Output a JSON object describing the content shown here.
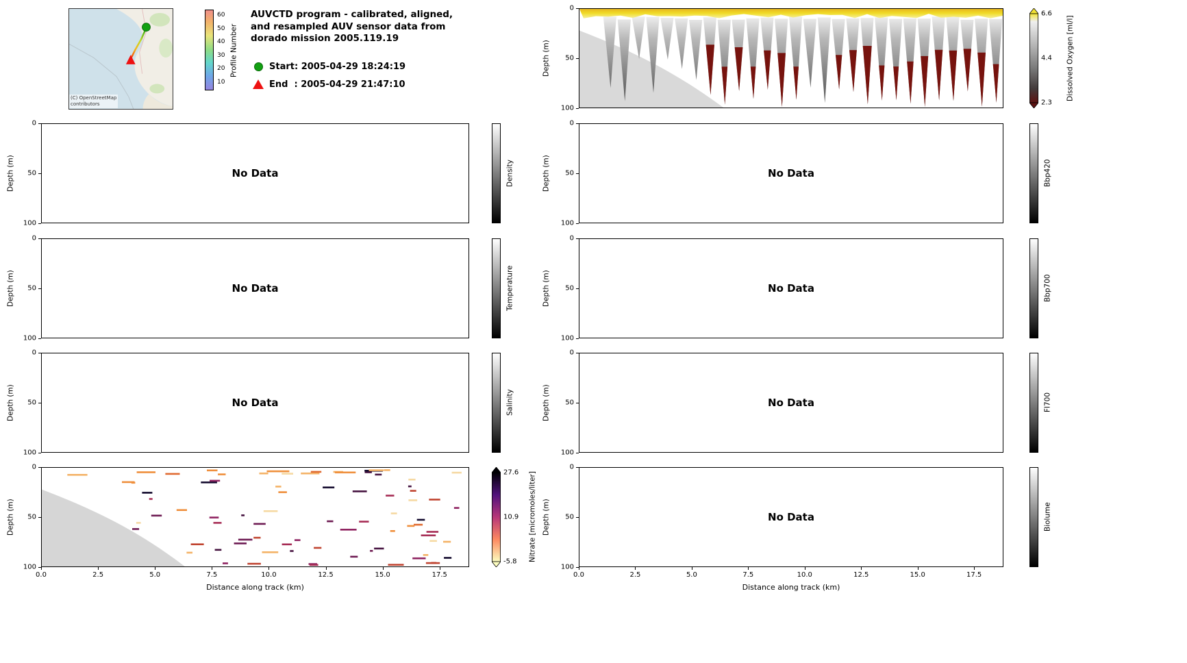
{
  "header": {
    "title_lines": [
      "AUVCTD program - calibrated, aligned,",
      "and resampled AUV sensor data from",
      "dorado mission 2005.119.19"
    ],
    "legend": {
      "start_label": "Start: 2005-04-29 18:24:19",
      "end_label": "End  : 2005-04-29 21:47:10",
      "start_color": "#12a012",
      "end_color": "#ee1111"
    }
  },
  "map": {
    "attribution_lines": [
      "(C) OpenStreetMap",
      "contributors"
    ],
    "colorbar": {
      "label": "Profile Number",
      "ticks": [
        "60",
        "50",
        "40",
        "30",
        "20",
        "10"
      ]
    }
  },
  "axes": {
    "depth_label": "Depth (m)",
    "depth_ticks": [
      "0",
      "50",
      "100"
    ],
    "x_label": "Distance along track (km)",
    "x_ticks": [
      "0.0",
      "2.5",
      "5.0",
      "7.5",
      "10.0",
      "12.5",
      "15.0",
      "17.5"
    ],
    "x_max_km": 18.8,
    "depth_range_m": [
      0,
      100
    ]
  },
  "labels": {
    "no_data": "No Data"
  },
  "chart_data": [
    {
      "id": "track_map",
      "type": "map",
      "description": "Monterey Bay coastline map with AUV track colored by profile number; green circle start marker to the north-east of the track, red triangle end marker to the south-west.",
      "colorbar": {
        "label": "Profile Number",
        "ticks": [
          60,
          50,
          40,
          30,
          20,
          10
        ]
      }
    },
    {
      "id": "dissolved_oxygen",
      "type": "section-heatmap",
      "column": "right",
      "row": 0,
      "has_data": true,
      "ylabel": "Depth (m)",
      "ylim": [
        100,
        0
      ],
      "yticks": [
        0,
        50,
        100
      ],
      "xlim_km": [
        0,
        18.8
      ],
      "value_range": [
        2.3,
        6.6
      ],
      "summary": "High oxygen (~6.6 ml/l, yellow) in the upper ~10 m along the whole transect; below, sawtooth profile envelopes shade from light to dark gray with depth; hypoxic dark-red water (~2.3 ml/l) deeper than ~50 m beyond ~6 km along track; light-gray seafloor mask slopes from ~25 m depth at 0 km down to 100 m near 6.5 km.",
      "colorbar": {
        "label": "Dissolved Oxygen [ml/l]",
        "ticks": [
          "6.6",
          "4.4",
          "2.3"
        ],
        "extend": "both",
        "stops": [
          [
            "#f2e334",
            0
          ],
          [
            "#efefef",
            9
          ],
          [
            "#b0b0b0",
            38
          ],
          [
            "#787878",
            62
          ],
          [
            "#433a3a",
            84
          ],
          [
            "#5e1312",
            100
          ]
        ]
      }
    },
    {
      "id": "density",
      "type": "section-heatmap",
      "column": "left",
      "row": 1,
      "has_data": false,
      "ylabel": "Depth (m)",
      "ylim": [
        100,
        0
      ],
      "yticks": [
        0,
        50,
        100
      ],
      "colorbar": {
        "label": "Density",
        "stops": [
          [
            "#ffffff",
            0
          ],
          [
            "#000000",
            100
          ]
        ]
      }
    },
    {
      "id": "bbp420",
      "type": "section-heatmap",
      "column": "right",
      "row": 1,
      "has_data": false,
      "ylabel": "Depth (m)",
      "ylim": [
        100,
        0
      ],
      "yticks": [
        0,
        50,
        100
      ],
      "colorbar": {
        "label": "Bbp420",
        "stops": [
          [
            "#ffffff",
            0
          ],
          [
            "#000000",
            100
          ]
        ]
      }
    },
    {
      "id": "temperature",
      "type": "section-heatmap",
      "column": "left",
      "row": 2,
      "has_data": false,
      "ylabel": "Depth (m)",
      "ylim": [
        100,
        0
      ],
      "yticks": [
        0,
        50,
        100
      ],
      "colorbar": {
        "label": "Temperature",
        "stops": [
          [
            "#ffffff",
            0
          ],
          [
            "#000000",
            100
          ]
        ]
      }
    },
    {
      "id": "bbp700",
      "type": "section-heatmap",
      "column": "right",
      "row": 2,
      "has_data": false,
      "ylabel": "Depth (m)",
      "ylim": [
        100,
        0
      ],
      "yticks": [
        0,
        50,
        100
      ],
      "colorbar": {
        "label": "Bbp700",
        "stops": [
          [
            "#ffffff",
            0
          ],
          [
            "#000000",
            100
          ]
        ]
      }
    },
    {
      "id": "salinity",
      "type": "section-heatmap",
      "column": "left",
      "row": 3,
      "has_data": false,
      "ylabel": "Depth (m)",
      "ylim": [
        100,
        0
      ],
      "yticks": [
        0,
        50,
        100
      ],
      "colorbar": {
        "label": "Salinity",
        "stops": [
          [
            "#ffffff",
            0
          ],
          [
            "#000000",
            100
          ]
        ]
      }
    },
    {
      "id": "fl700",
      "type": "section-heatmap",
      "column": "right",
      "row": 3,
      "has_data": false,
      "ylabel": "Depth (m)",
      "ylim": [
        100,
        0
      ],
      "yticks": [
        0,
        50,
        100
      ],
      "colorbar": {
        "label": "Fl700",
        "stops": [
          [
            "#ffffff",
            0
          ],
          [
            "#000000",
            100
          ]
        ]
      }
    },
    {
      "id": "nitrate",
      "type": "section-scatter",
      "column": "left",
      "row": 4,
      "has_data": true,
      "ylabel": "Depth (m)",
      "ylim": [
        100,
        0
      ],
      "yticks": [
        0,
        50,
        100
      ],
      "xlim_km": [
        0,
        18.8
      ],
      "value_range": [
        -5.8,
        27.6
      ],
      "summary": "Sparse short horizontal streaks of nitrate samples: pale-orange low values in the upper ~10 m across the transect; scattered dark-purple and crimson higher values between ~15 and 100 m, mostly beyond 4 km along track; light-gray seafloor mask in the lower-left wedge (0 - 6.5 km).",
      "colorbar": {
        "label": "Nitrate [micromoles/liter]",
        "ticks": [
          "27.6",
          "10.9",
          "-5.8"
        ],
        "extend": "both",
        "stops": [
          [
            "#000004",
            0
          ],
          [
            "#51127c",
            25
          ],
          [
            "#b73779",
            50
          ],
          [
            "#fc8961",
            75
          ],
          [
            "#fcfdbf",
            100
          ]
        ]
      }
    },
    {
      "id": "biolume",
      "type": "section-heatmap",
      "column": "right",
      "row": 4,
      "has_data": false,
      "ylabel": "Depth (m)",
      "ylim": [
        100,
        0
      ],
      "yticks": [
        0,
        50,
        100
      ],
      "colorbar": {
        "label": "Biolume",
        "stops": [
          [
            "#ffffff",
            0
          ],
          [
            "#000000",
            100
          ]
        ]
      }
    }
  ]
}
